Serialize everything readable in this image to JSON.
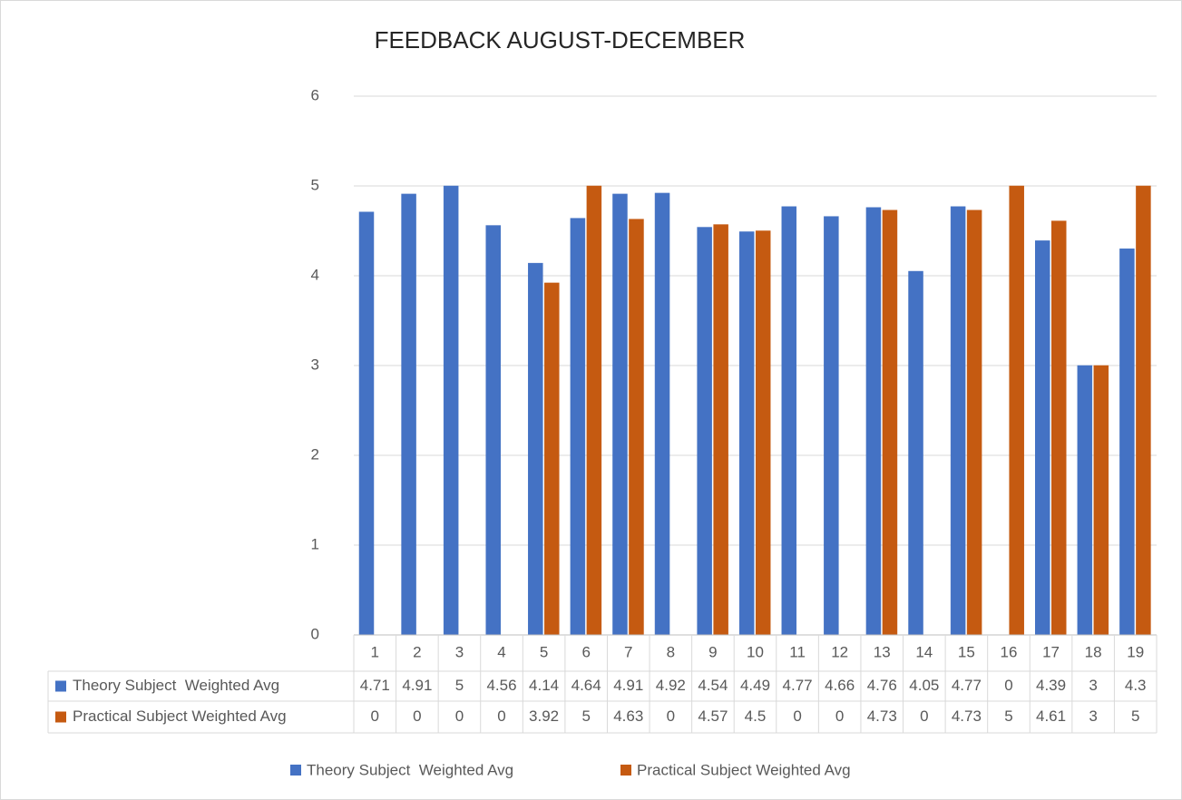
{
  "chart_data": {
    "type": "bar",
    "title": "FEEDBACK AUGUST-DECEMBER",
    "categories": [
      "1",
      "2",
      "3",
      "4",
      "5",
      "6",
      "7",
      "8",
      "9",
      "10",
      "11",
      "12",
      "13",
      "14",
      "15",
      "16",
      "17",
      "18",
      "19"
    ],
    "series": [
      {
        "name": "Theory Subject  Weighted Avg",
        "color": "#4472c4",
        "values": [
          4.71,
          4.91,
          5,
          4.56,
          4.14,
          4.64,
          4.91,
          4.92,
          4.54,
          4.49,
          4.77,
          4.66,
          4.76,
          4.05,
          4.77,
          0,
          4.39,
          3,
          4.3
        ]
      },
      {
        "name": "Practical Subject Weighted Avg",
        "color": "#c55a11",
        "values": [
          0,
          0,
          0,
          0,
          3.92,
          5,
          4.63,
          0,
          4.57,
          4.5,
          0,
          0,
          4.73,
          0,
          4.73,
          5,
          4.61,
          3,
          5
        ]
      }
    ],
    "ylim": [
      0,
      6
    ],
    "yticks": [
      0,
      1,
      2,
      3,
      4,
      5,
      6
    ],
    "grid": true,
    "legend": "bottom"
  }
}
